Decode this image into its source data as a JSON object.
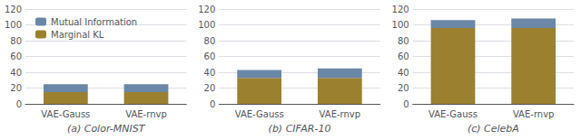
{
  "chart_data": [
    {
      "type": "bar",
      "stacked": true,
      "xlabel": "(a) Color-MNIST",
      "categories": [
        "VAE-Gauss",
        "VAE-rnvp"
      ],
      "series": [
        {
          "name": "Marginal KL",
          "color": "#9b8030",
          "values": [
            15,
            15
          ]
        },
        {
          "name": "Mutual Information",
          "color": "#6a87a8",
          "values": [
            10,
            10
          ]
        }
      ],
      "ylim": [
        0,
        120
      ],
      "yticks": [
        0,
        20,
        40,
        60,
        80,
        100,
        120
      ],
      "grid": true,
      "legend": "upper left"
    },
    {
      "type": "bar",
      "stacked": true,
      "xlabel": "(b) CIFAR-10",
      "categories": [
        "VAE-Gauss",
        "VAE-rnvp"
      ],
      "series": [
        {
          "name": "Marginal KL",
          "color": "#9b8030",
          "values": [
            33,
            33
          ]
        },
        {
          "name": "Mutual Information",
          "color": "#6a87a8",
          "values": [
            10,
            12
          ]
        }
      ],
      "ylim": [
        0,
        120
      ],
      "yticks": [
        0,
        20,
        40,
        60,
        80,
        100,
        120
      ],
      "grid": true
    },
    {
      "type": "bar",
      "stacked": true,
      "xlabel": "(c) CelebA",
      "categories": [
        "VAE-Gauss",
        "VAE-rnvp"
      ],
      "series": [
        {
          "name": "Marginal KL",
          "color": "#9b8030",
          "values": [
            96,
            96
          ]
        },
        {
          "name": "Mutual Information",
          "color": "#6a87a8",
          "values": [
            10,
            12
          ]
        }
      ],
      "ylim": [
        0,
        120
      ],
      "yticks": [
        0,
        20,
        40,
        60,
        80,
        100,
        120
      ],
      "grid": true
    }
  ]
}
